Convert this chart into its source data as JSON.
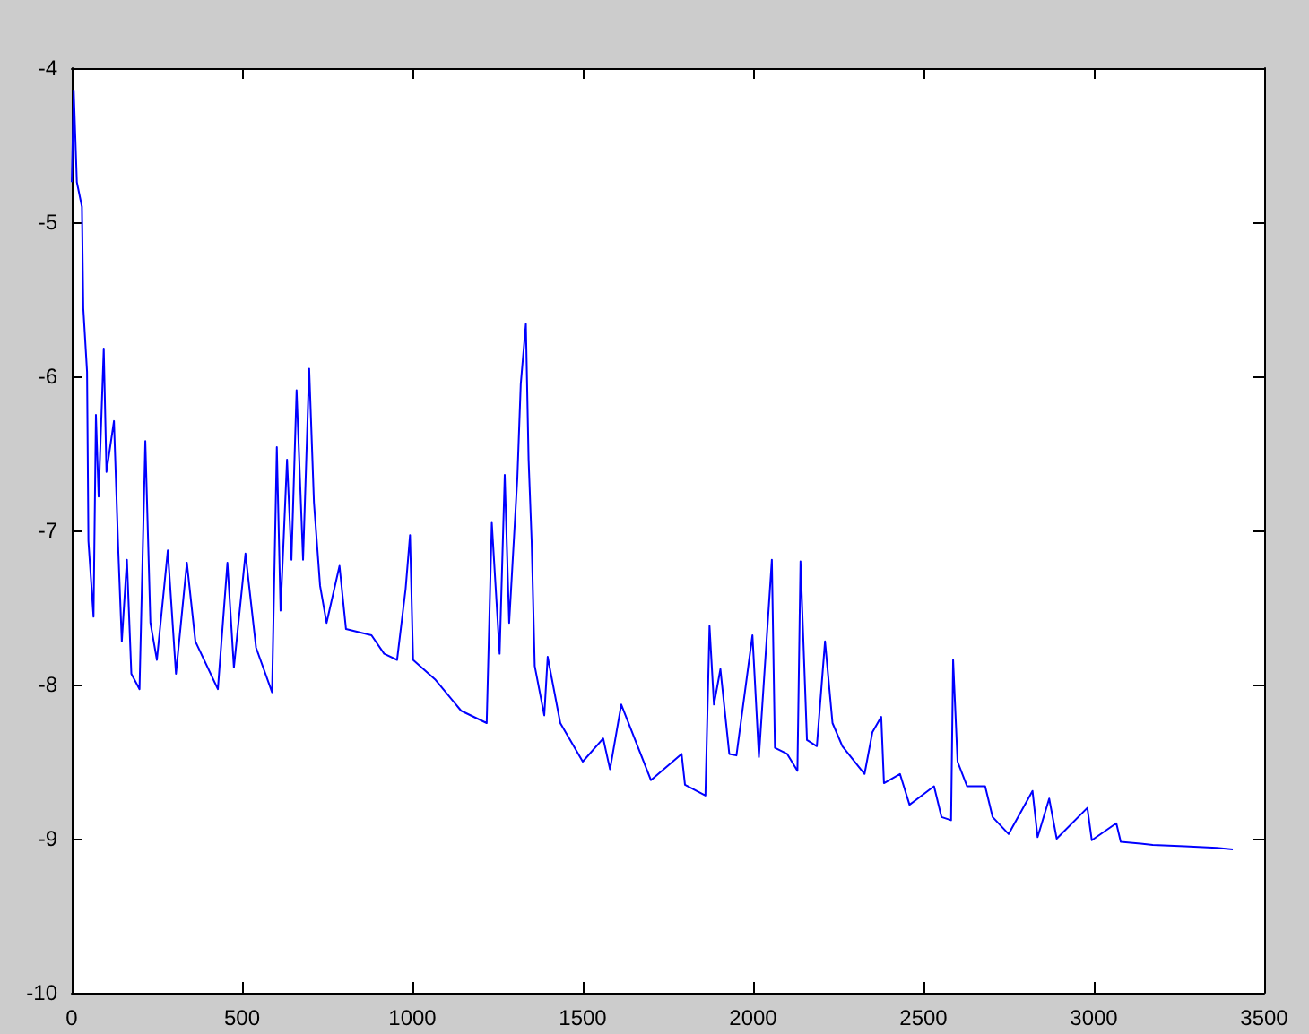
{
  "chart_data": {
    "type": "line",
    "xlim": [
      0,
      3500
    ],
    "xticks": [
      0,
      500,
      1000,
      1500,
      2000,
      2500,
      3000,
      3500
    ],
    "ylim": [
      -10,
      -4
    ],
    "yticks": [
      -10,
      -9,
      -8,
      -7,
      -6,
      -5,
      -4
    ],
    "grid": false,
    "marker": "none",
    "line_style": "solid",
    "series": [
      {
        "color": "#0000ff",
        "x": [
          0,
          6,
          15,
          30,
          34,
          45,
          49,
          64,
          71,
          79,
          94,
          102,
          124,
          137,
          147,
          162,
          175,
          199,
          216,
          231,
          250,
          282,
          306,
          338,
          363,
          429,
          457,
          476,
          510,
          541,
          588,
          602,
          613,
          632,
          645,
          660,
          679,
          697,
          711,
          729,
          748,
          786,
          805,
          880,
          917,
          955,
          980,
          993,
          1002,
          1068,
          1143,
          1218,
          1233,
          1256,
          1271,
          1284,
          1308,
          1318,
          1333,
          1341,
          1350,
          1359,
          1387,
          1397,
          1434,
          1500,
          1560,
          1580,
          1613,
          1700,
          1790,
          1800,
          1860,
          1872,
          1885,
          1904,
          1930,
          1951,
          1998,
          2017,
          2055,
          2064,
          2100,
          2130,
          2139,
          2158,
          2187,
          2211,
          2233,
          2262,
          2327,
          2350,
          2376,
          2384,
          2431,
          2459,
          2531,
          2553,
          2581,
          2587,
          2600,
          2628,
          2681,
          2703,
          2750,
          2820,
          2835,
          2869,
          2891,
          2981,
          2994,
          3066,
          3079,
          3173,
          3267,
          3361,
          3408
        ],
        "values": [
          -4.74,
          -4.15,
          -4.74,
          -4.9,
          -5.56,
          -5.97,
          -7.07,
          -7.56,
          -6.25,
          -6.78,
          -5.82,
          -6.62,
          -6.29,
          -7.15,
          -7.72,
          -7.19,
          -7.93,
          -8.03,
          -6.42,
          -7.6,
          -7.84,
          -7.13,
          -7.93,
          -7.21,
          -7.72,
          -8.03,
          -7.21,
          -7.89,
          -7.15,
          -7.76,
          -8.05,
          -6.46,
          -7.52,
          -6.54,
          -7.19,
          -6.09,
          -7.19,
          -5.95,
          -6.82,
          -7.36,
          -7.6,
          -7.23,
          -7.64,
          -7.68,
          -7.8,
          -7.84,
          -7.38,
          -7.03,
          -7.84,
          -7.97,
          -8.17,
          -8.25,
          -6.95,
          -7.8,
          -6.64,
          -7.6,
          -6.66,
          -6.05,
          -5.66,
          -6.54,
          -7.07,
          -7.88,
          -8.2,
          -7.82,
          -8.25,
          -8.5,
          -8.35,
          -8.55,
          -8.13,
          -8.62,
          -8.45,
          -8.65,
          -8.72,
          -7.62,
          -8.13,
          -7.9,
          -8.45,
          -8.46,
          -7.68,
          -8.47,
          -7.19,
          -8.41,
          -8.45,
          -8.56,
          -7.2,
          -8.36,
          -8.4,
          -7.72,
          -8.25,
          -8.4,
          -8.58,
          -8.31,
          -8.21,
          -8.64,
          -8.58,
          -8.78,
          -8.66,
          -8.86,
          -8.88,
          -7.84,
          -8.5,
          -8.66,
          -8.66,
          -8.86,
          -8.97,
          -8.69,
          -8.99,
          -8.74,
          -9.0,
          -8.8,
          -9.01,
          -8.9,
          -9.02,
          -9.04,
          -9.05,
          -9.06,
          -9.07
        ]
      }
    ]
  }
}
